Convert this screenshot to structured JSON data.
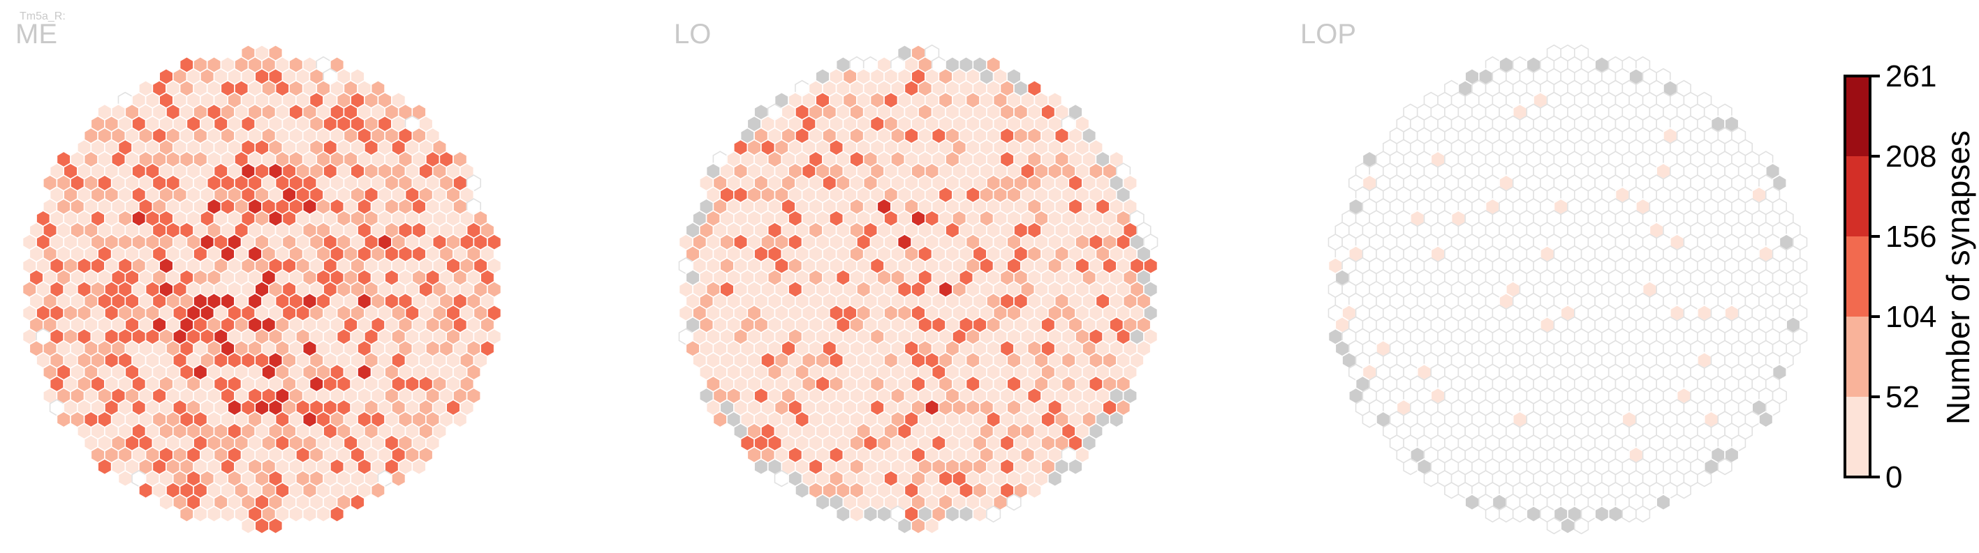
{
  "neuron_label": "Tm5a_R:",
  "chart_data": {
    "type": "heatmap",
    "layout": "hexagonal columns",
    "panels": [
      {
        "label": "ME",
        "density": "dense",
        "mean_level": 2.2,
        "max_level": 5,
        "boundary_gray": false
      },
      {
        "label": "LO",
        "density": "medium",
        "mean_level": 1.3,
        "max_level": 4,
        "boundary_gray": true
      },
      {
        "label": "LOP",
        "density": "sparse",
        "mean_level": 0.05,
        "max_level": 1,
        "boundary_gray": true
      }
    ],
    "colorbar": {
      "title": "Number of synapses",
      "min": 0,
      "max": 261,
      "ticks": [
        "0",
        "52",
        "104",
        "156",
        "208",
        "261"
      ],
      "colors": [
        "#fde3d8",
        "#f9b39a",
        "#f26a4f",
        "#d32f27",
        "#9c0d13"
      ]
    },
    "colors": {
      "empty_fill": "#ffffff",
      "empty_stroke": "#e1e1e1",
      "missing_fill": "#cccccc",
      "hex_stroke": "#ffffff"
    }
  }
}
